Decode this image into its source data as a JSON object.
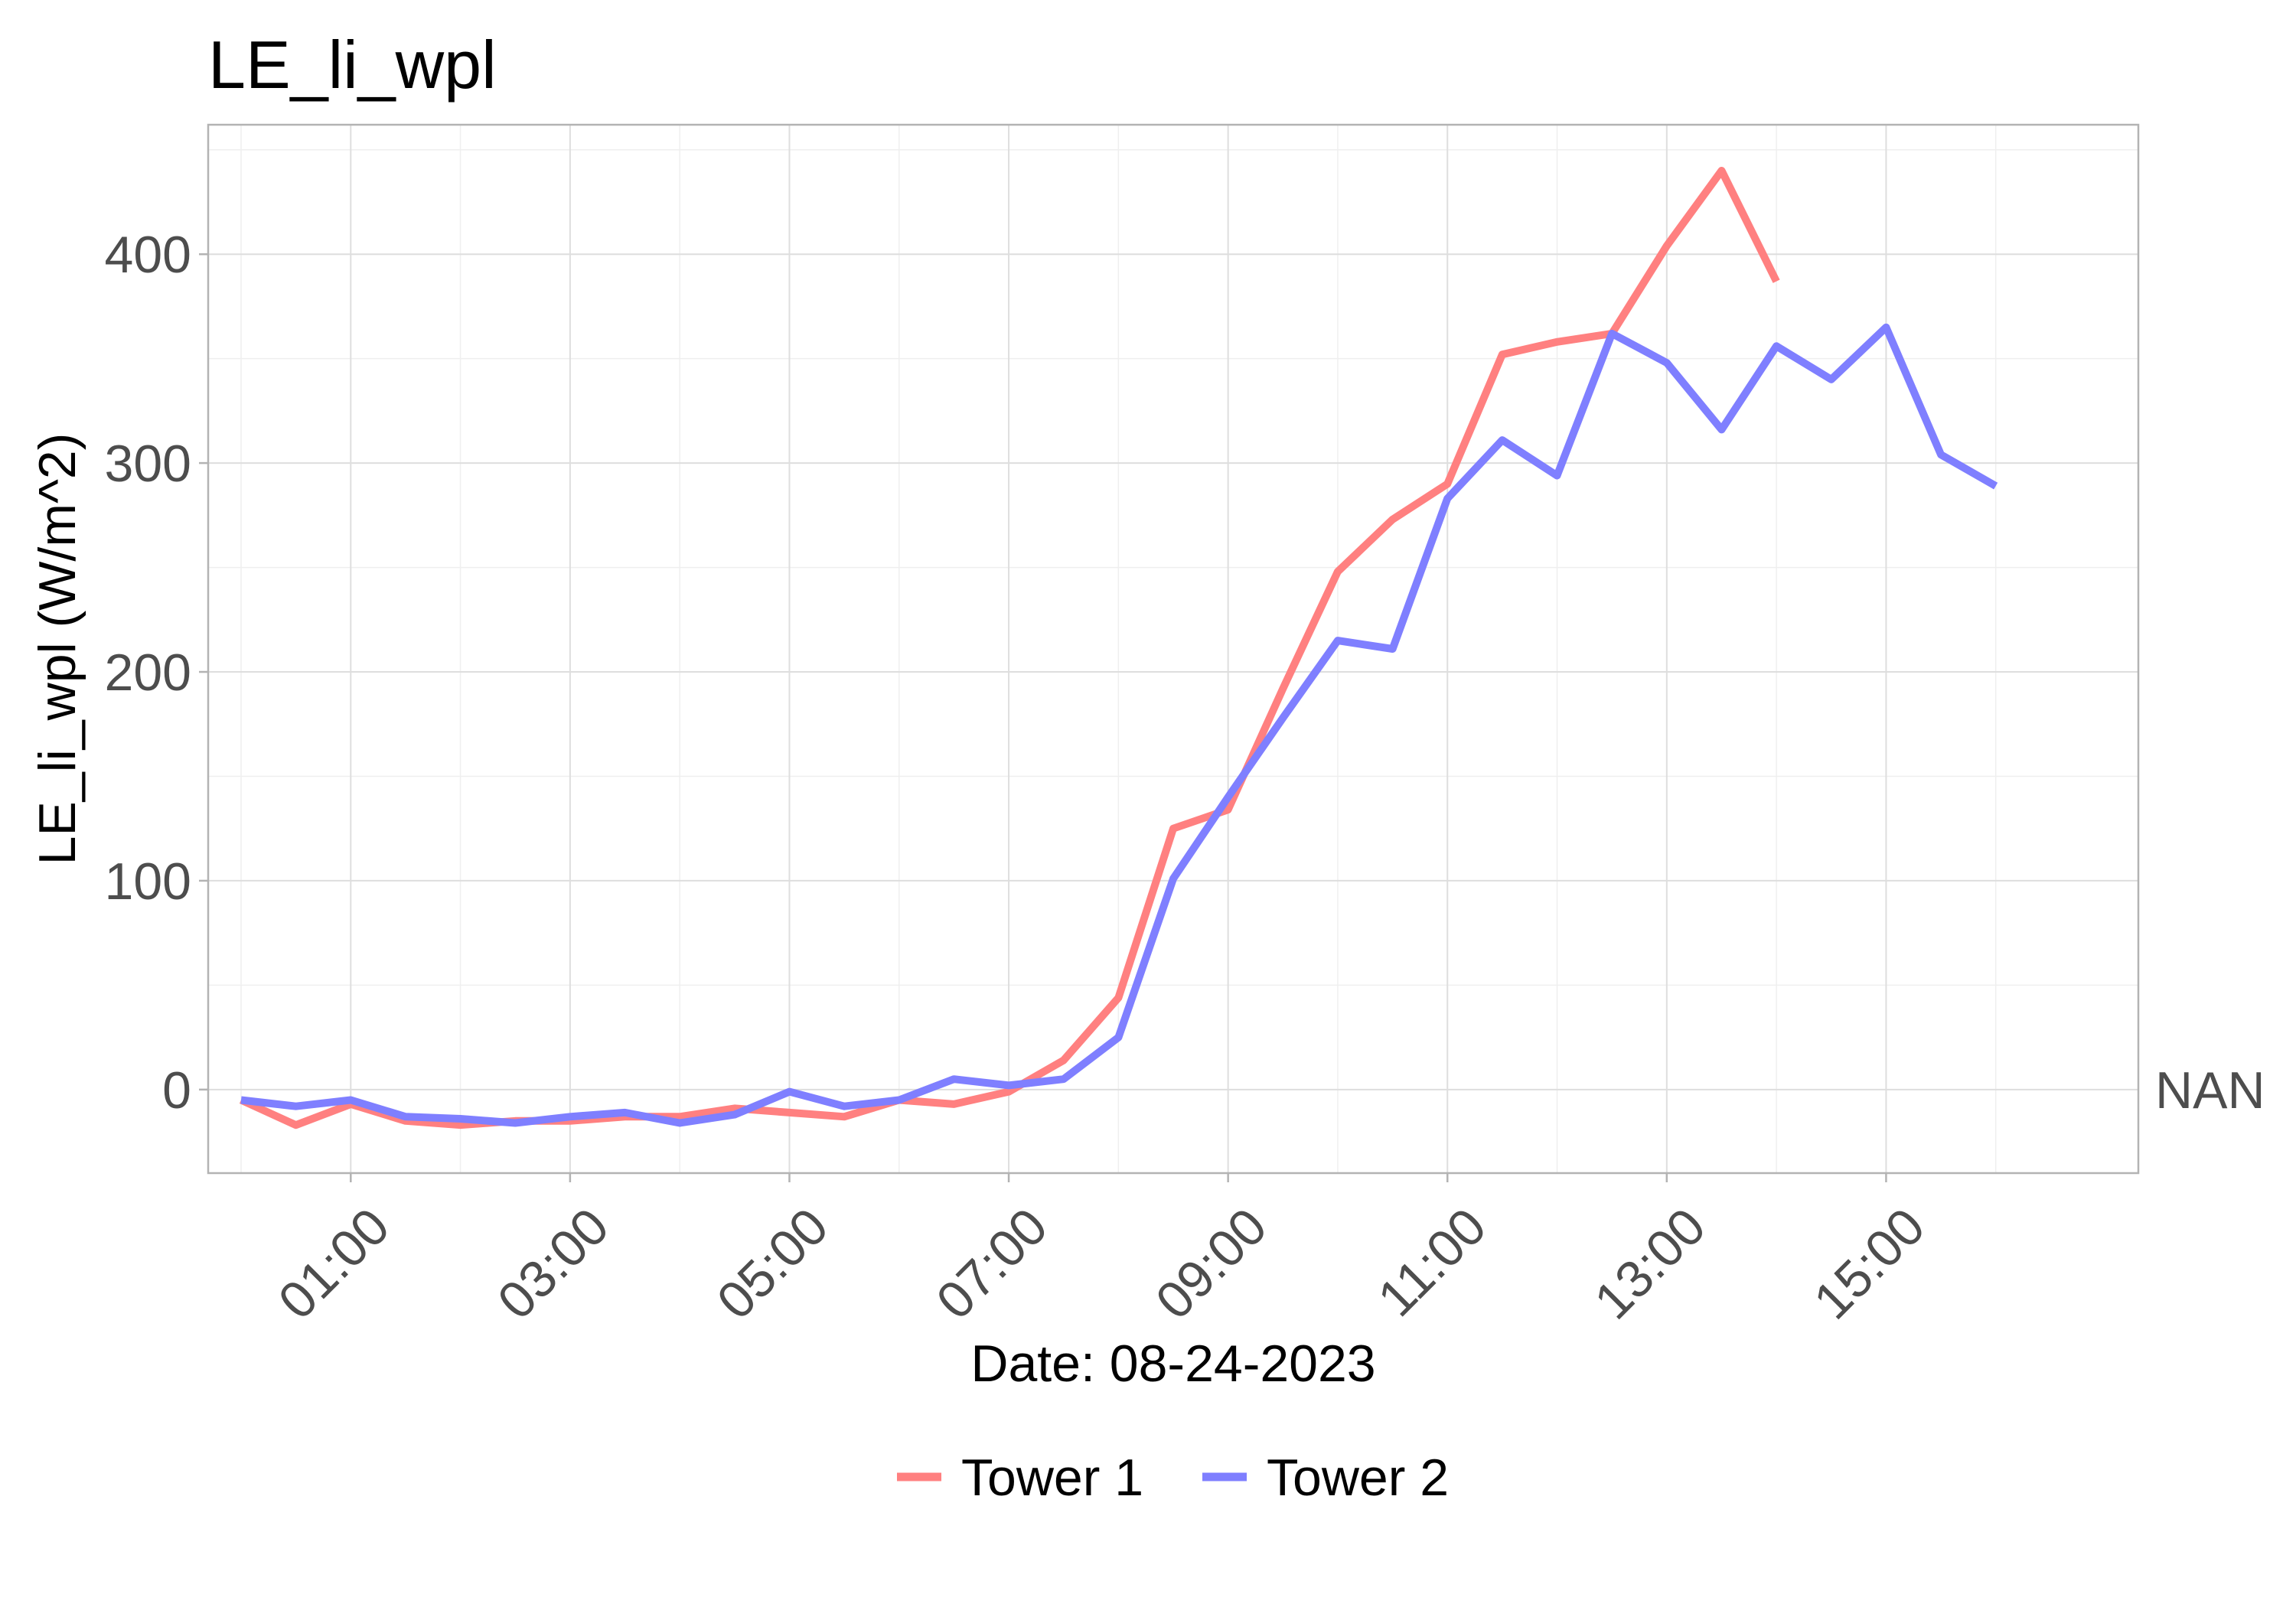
{
  "chart_data": {
    "type": "line",
    "title": "LE_li_wpl",
    "xlabel": "Date: 08-24-2023",
    "ylabel": "LE_li_wpl (W/m^2)",
    "x_ticks": [
      1,
      3,
      5,
      7,
      9,
      11,
      13,
      15
    ],
    "x_tick_labels": [
      "01:00",
      "03:00",
      "05:00",
      "07:00",
      "09:00",
      "11:00",
      "13:00",
      "15:00"
    ],
    "y_ticks": [
      0,
      100,
      200,
      300,
      400
    ],
    "y_tick_labels": [
      "0",
      "100",
      "200",
      "300",
      "400"
    ],
    "xlim": [
      -0.3,
      17.3
    ],
    "ylim": [
      -40,
      462
    ],
    "grid": true,
    "legend_position": "bottom",
    "secondary_label": "NAN",
    "series": [
      {
        "name": "Tower 1",
        "color": "#ff8080",
        "x": [
          0,
          0.5,
          1,
          1.5,
          2,
          2.5,
          3,
          3.5,
          4,
          4.5,
          5,
          5.5,
          6,
          6.5,
          7,
          7.5,
          8,
          8.5,
          9,
          9.5,
          10,
          10.5,
          11,
          11.5,
          12,
          12.5,
          13,
          13.5,
          14
        ],
        "values": [
          -5,
          -17,
          -7,
          -15,
          -17,
          -15,
          -15,
          -13,
          -13,
          -9,
          -11,
          -13,
          -5,
          -7,
          -1,
          14,
          44,
          125,
          134,
          192,
          248,
          273,
          290,
          352,
          358,
          362,
          404,
          440,
          387
        ]
      },
      {
        "name": "Tower 2",
        "color": "#7f7fff",
        "x": [
          0,
          0.5,
          1,
          1.5,
          2,
          2.5,
          3,
          3.5,
          4,
          4.5,
          5,
          5.5,
          6,
          6.5,
          7,
          7.5,
          8,
          8.5,
          9,
          9.5,
          10,
          10.5,
          11,
          11.5,
          12,
          12.5,
          13,
          13.5,
          14,
          14.5,
          15,
          15.5,
          16
        ],
        "values": [
          -5,
          -8,
          -5,
          -13,
          -14,
          -16,
          -13,
          -11,
          -16,
          -12,
          -1,
          -8,
          -5,
          5,
          2,
          5,
          25,
          101,
          140,
          178,
          215,
          211,
          283,
          311,
          294,
          362,
          348,
          316,
          356,
          340,
          365,
          304,
          289
        ]
      }
    ]
  }
}
